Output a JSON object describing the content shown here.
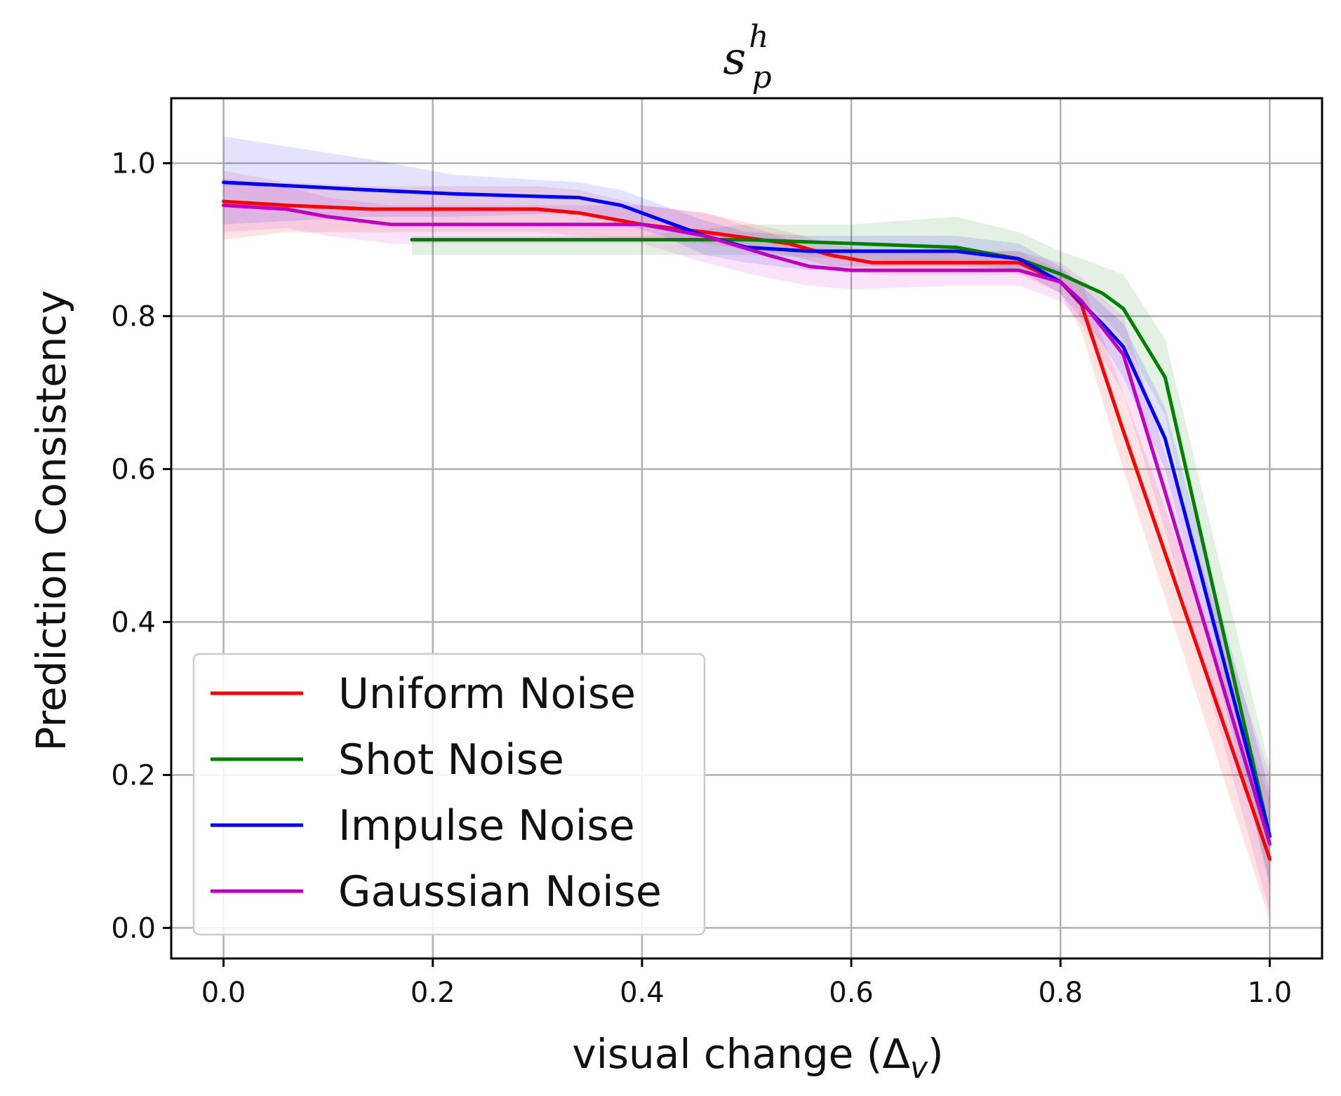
{
  "chart_data": {
    "type": "line",
    "title": {
      "main": "s",
      "sub": "p",
      "sup": "h"
    },
    "xlabel": {
      "main": "visual change (Δ",
      "sub": "v",
      "close": ")"
    },
    "ylabel": "Prediction Consistency",
    "xlim": [
      -0.05,
      1.05
    ],
    "ylim": [
      -0.04,
      1.085
    ],
    "xticks": [
      0.0,
      0.2,
      0.4,
      0.6,
      0.8,
      1.0
    ],
    "yticks": [
      0.0,
      0.2,
      0.4,
      0.6,
      0.8,
      1.0
    ],
    "xtick_labels": [
      "0.0",
      "0.2",
      "0.4",
      "0.6",
      "0.8",
      "1.0"
    ],
    "ytick_labels": [
      "0.0",
      "0.2",
      "0.4",
      "0.6",
      "0.8",
      "1.0"
    ],
    "grid": true,
    "legend_position": "lower-left",
    "series": [
      {
        "name": "Uniform Noise",
        "color": "#ff0000",
        "x": [
          0.0,
          0.06,
          0.14,
          0.22,
          0.3,
          0.34,
          0.4,
          0.46,
          0.54,
          0.58,
          0.62,
          0.7,
          0.76,
          0.8,
          0.82,
          0.86,
          1.0
        ],
        "y": [
          0.95,
          0.945,
          0.94,
          0.94,
          0.94,
          0.935,
          0.92,
          0.91,
          0.895,
          0.88,
          0.87,
          0.87,
          0.87,
          0.845,
          0.815,
          0.65,
          0.09
        ],
        "lower": [
          0.9,
          0.91,
          0.91,
          0.91,
          0.91,
          0.905,
          0.9,
          0.895,
          0.88,
          0.865,
          0.855,
          0.855,
          0.855,
          0.83,
          0.78,
          0.6,
          0.01
        ],
        "upper": [
          0.99,
          0.975,
          0.97,
          0.97,
          0.97,
          0.965,
          0.945,
          0.935,
          0.91,
          0.895,
          0.885,
          0.885,
          0.885,
          0.86,
          0.845,
          0.7,
          0.17
        ]
      },
      {
        "name": "Shot Noise",
        "color": "#008000",
        "x": [
          0.18,
          0.3,
          0.4,
          0.5,
          0.6,
          0.7,
          0.76,
          0.8,
          0.84,
          0.86,
          0.9,
          1.0
        ],
        "y": [
          0.9,
          0.9,
          0.9,
          0.9,
          0.895,
          0.89,
          0.875,
          0.855,
          0.83,
          0.81,
          0.72,
          0.12
        ],
        "lower": [
          0.88,
          0.88,
          0.88,
          0.88,
          0.875,
          0.87,
          0.86,
          0.84,
          0.8,
          0.77,
          0.67,
          0.05
        ],
        "upper": [
          0.905,
          0.905,
          0.905,
          0.92,
          0.92,
          0.93,
          0.91,
          0.885,
          0.865,
          0.855,
          0.77,
          0.21
        ]
      },
      {
        "name": "Impulse Noise",
        "color": "#0000ff",
        "x": [
          0.0,
          0.14,
          0.22,
          0.34,
          0.38,
          0.42,
          0.46,
          0.5,
          0.56,
          0.6,
          0.7,
          0.76,
          0.8,
          0.84,
          0.86,
          0.9,
          1.0
        ],
        "y": [
          0.975,
          0.965,
          0.96,
          0.955,
          0.945,
          0.925,
          0.905,
          0.89,
          0.885,
          0.885,
          0.885,
          0.875,
          0.845,
          0.79,
          0.76,
          0.64,
          0.12
        ],
        "lower": [
          0.92,
          0.93,
          0.93,
          0.935,
          0.92,
          0.905,
          0.88,
          0.87,
          0.86,
          0.865,
          0.865,
          0.86,
          0.83,
          0.765,
          0.72,
          0.6,
          0.06
        ],
        "upper": [
          1.035,
          1.005,
          0.985,
          0.975,
          0.965,
          0.945,
          0.925,
          0.91,
          0.905,
          0.905,
          0.905,
          0.895,
          0.865,
          0.815,
          0.79,
          0.68,
          0.18
        ]
      },
      {
        "name": "Gaussian Noise",
        "color": "#c000c0",
        "x": [
          0.0,
          0.06,
          0.1,
          0.16,
          0.3,
          0.4,
          0.46,
          0.52,
          0.56,
          0.6,
          0.7,
          0.76,
          0.8,
          0.82,
          0.86,
          0.9,
          1.0
        ],
        "y": [
          0.945,
          0.94,
          0.93,
          0.92,
          0.92,
          0.92,
          0.905,
          0.88,
          0.865,
          0.86,
          0.86,
          0.86,
          0.845,
          0.82,
          0.75,
          0.57,
          0.11
        ],
        "lower": [
          0.91,
          0.915,
          0.905,
          0.895,
          0.895,
          0.895,
          0.87,
          0.85,
          0.84,
          0.835,
          0.84,
          0.84,
          0.82,
          0.79,
          0.7,
          0.52,
          0.02
        ],
        "upper": [
          0.98,
          0.97,
          0.955,
          0.945,
          0.945,
          0.945,
          0.935,
          0.91,
          0.89,
          0.885,
          0.885,
          0.885,
          0.87,
          0.85,
          0.8,
          0.62,
          0.2
        ]
      }
    ]
  }
}
